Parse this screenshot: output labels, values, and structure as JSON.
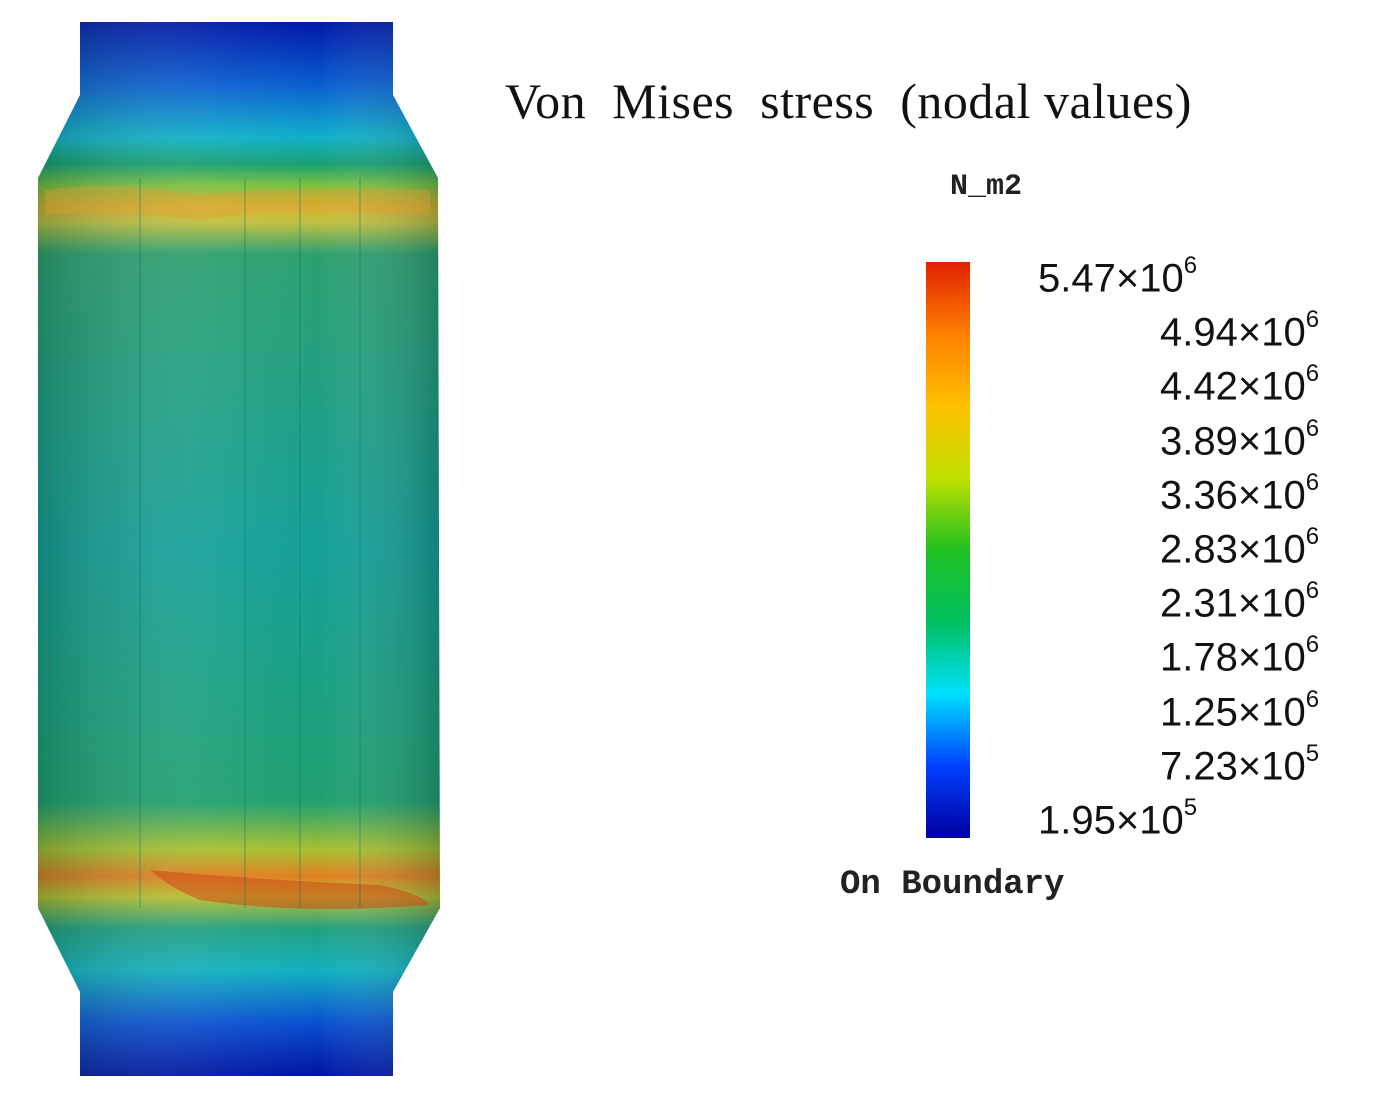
{
  "title": "Von  Mises  stress  (nodal values)",
  "unit": "N_m2",
  "footer": "On Boundary",
  "colormap": [
    "#0000a0",
    "#0040ff",
    "#00e0ff",
    "#00c060",
    "#20c020",
    "#c0e000",
    "#ffc000",
    "#ff8000",
    "#e02000"
  ],
  "legend_ticks": [
    {
      "mantissa": "5.47",
      "exp": "6"
    },
    {
      "mantissa": "4.94",
      "exp": "6"
    },
    {
      "mantissa": "4.42",
      "exp": "6"
    },
    {
      "mantissa": "3.89",
      "exp": "6"
    },
    {
      "mantissa": "3.36",
      "exp": "6"
    },
    {
      "mantissa": "2.83",
      "exp": "6"
    },
    {
      "mantissa": "2.31",
      "exp": "6"
    },
    {
      "mantissa": "1.78",
      "exp": "6"
    },
    {
      "mantissa": "1.25",
      "exp": "6"
    },
    {
      "mantissa": "7.23",
      "exp": "5"
    },
    {
      "mantissa": "1.95",
      "exp": "5"
    }
  ]
}
